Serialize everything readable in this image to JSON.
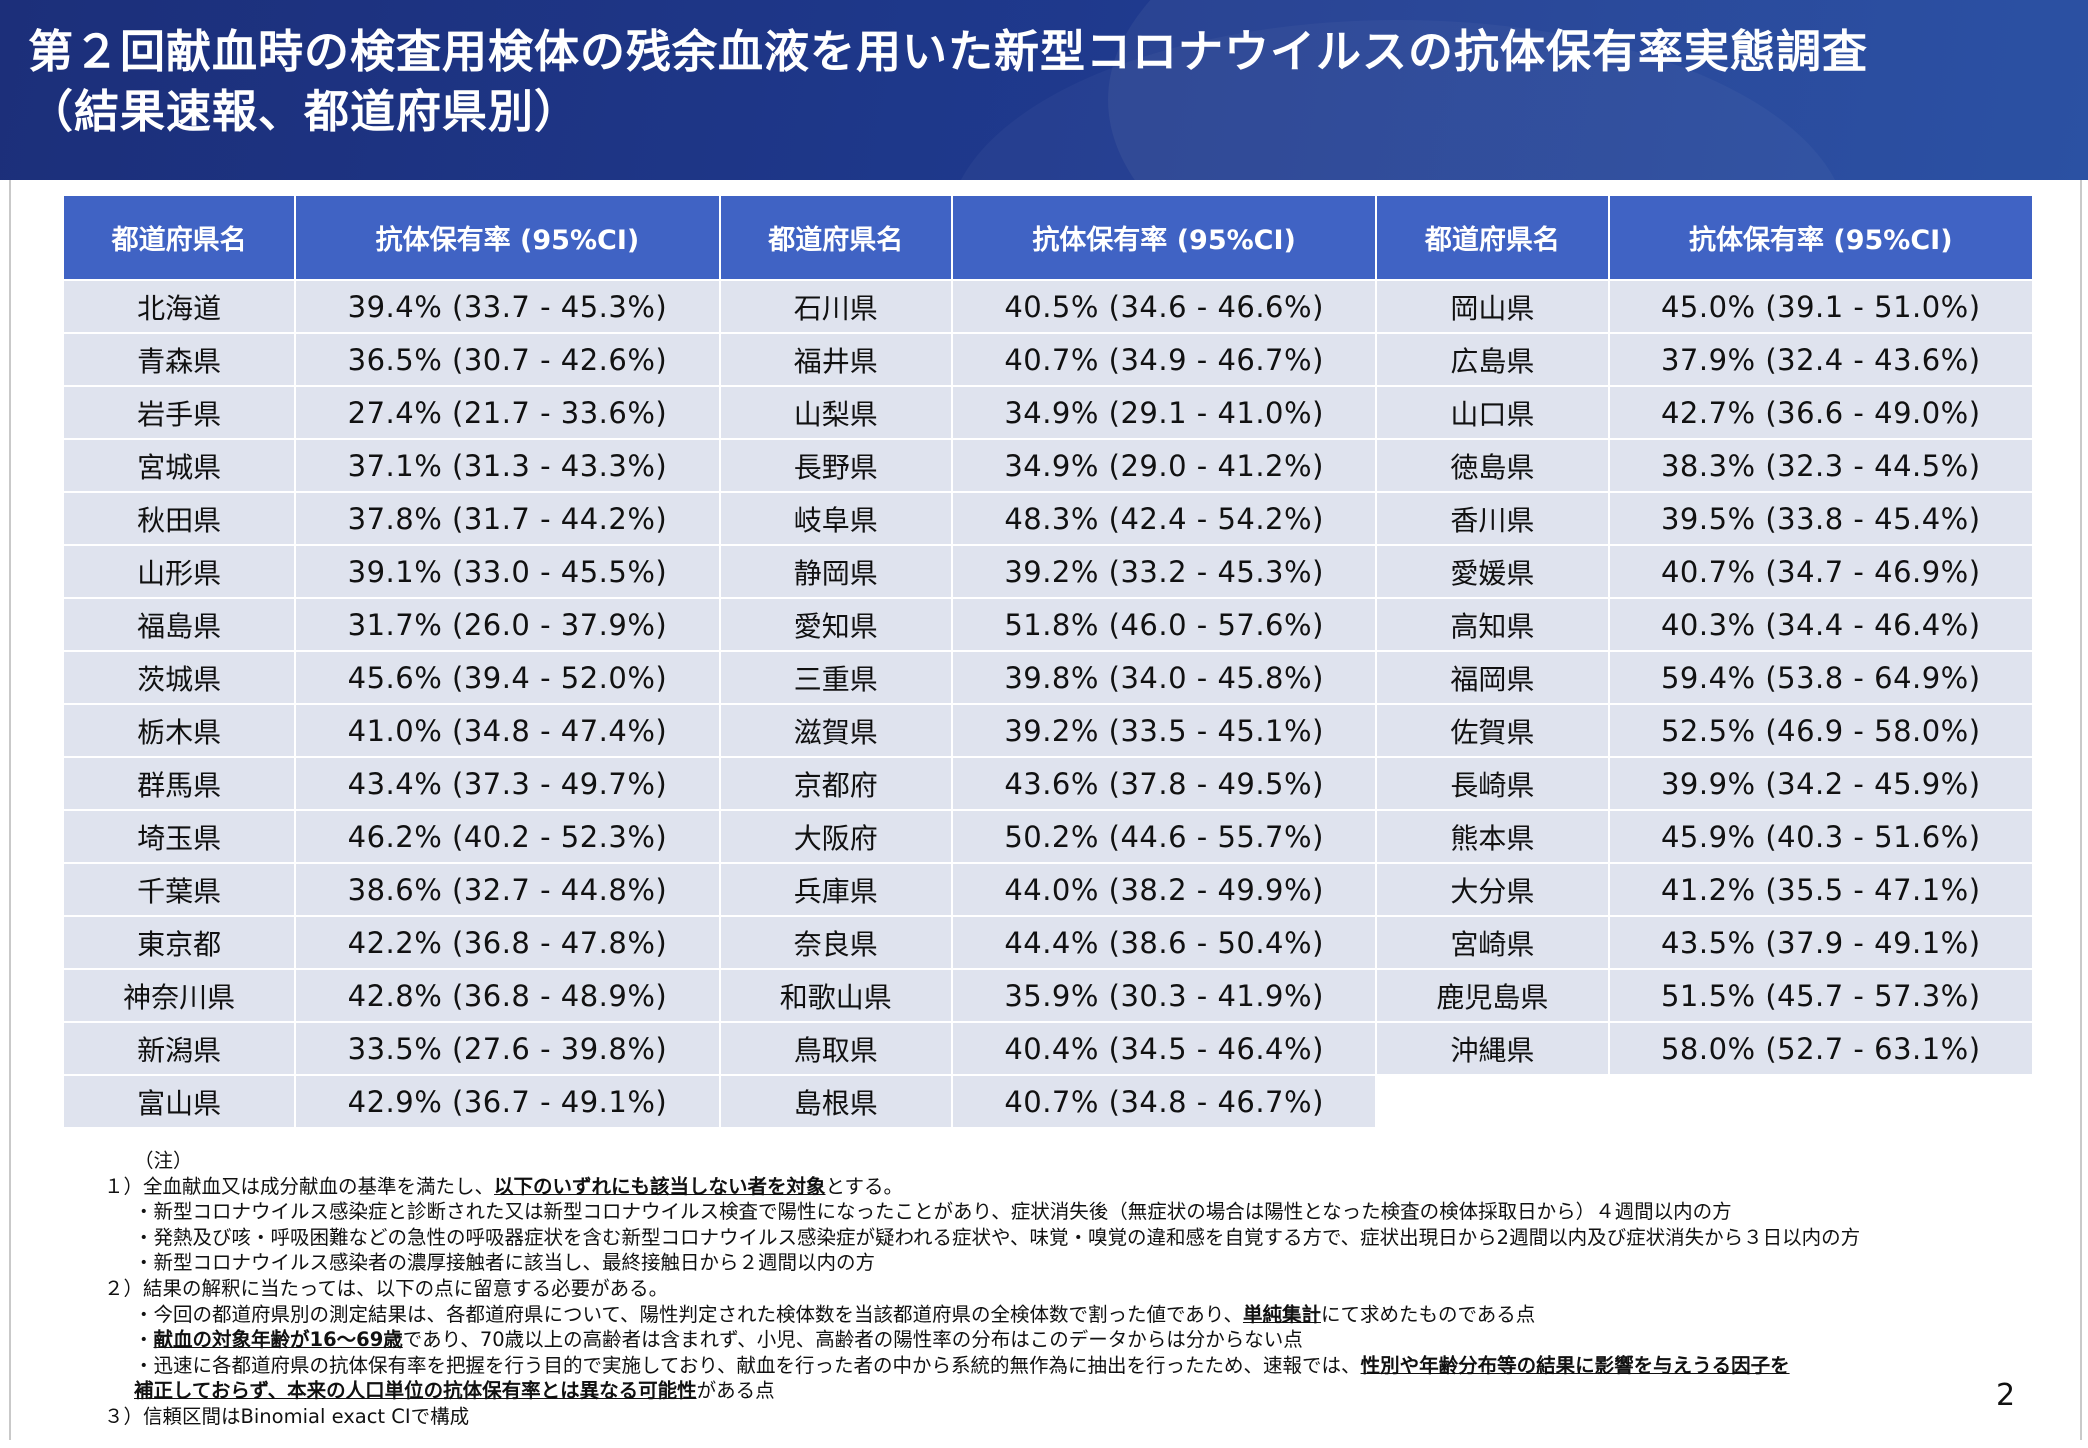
{
  "title": {
    "line1": "第２回献血時の検査用検体の残余血液を用いた新型コロナウイルスの抗体保有率実態調査",
    "line2": "（結果速報、都道府県別）"
  },
  "table": {
    "header_name": "都道府県名",
    "header_rate": "抗体保有率 (95%CI)",
    "columns": [
      [
        {
          "name": "北海道",
          "rate": "39.4% (33.7 - 45.3%)"
        },
        {
          "name": "青森県",
          "rate": "36.5% (30.7 - 42.6%)"
        },
        {
          "name": "岩手県",
          "rate": "27.4% (21.7 - 33.6%)"
        },
        {
          "name": "宮城県",
          "rate": "37.1% (31.3 - 43.3%)"
        },
        {
          "name": "秋田県",
          "rate": "37.8% (31.7 - 44.2%)"
        },
        {
          "name": "山形県",
          "rate": "39.1% (33.0 - 45.5%)"
        },
        {
          "name": "福島県",
          "rate": "31.7% (26.0 - 37.9%)"
        },
        {
          "name": "茨城県",
          "rate": "45.6% (39.4 - 52.0%)"
        },
        {
          "name": "栃木県",
          "rate": "41.0% (34.8 - 47.4%)"
        },
        {
          "name": "群馬県",
          "rate": "43.4% (37.3 - 49.7%)"
        },
        {
          "name": "埼玉県",
          "rate": "46.2% (40.2 - 52.3%)"
        },
        {
          "name": "千葉県",
          "rate": "38.6% (32.7 - 44.8%)"
        },
        {
          "name": "東京都",
          "rate": "42.2% (36.8 - 47.8%)"
        },
        {
          "name": "神奈川県",
          "rate": "42.8% (36.8 - 48.9%)"
        },
        {
          "name": "新潟県",
          "rate": "33.5% (27.6 - 39.8%)"
        },
        {
          "name": "富山県",
          "rate": "42.9% (36.7 - 49.1%)"
        }
      ],
      [
        {
          "name": "石川県",
          "rate": "40.5% (34.6 - 46.6%)"
        },
        {
          "name": "福井県",
          "rate": "40.7% (34.9 - 46.7%)"
        },
        {
          "name": "山梨県",
          "rate": "34.9% (29.1 - 41.0%)"
        },
        {
          "name": "長野県",
          "rate": "34.9% (29.0 - 41.2%)"
        },
        {
          "name": "岐阜県",
          "rate": "48.3% (42.4 - 54.2%)"
        },
        {
          "name": "静岡県",
          "rate": "39.2% (33.2 - 45.3%)"
        },
        {
          "name": "愛知県",
          "rate": "51.8% (46.0 - 57.6%)"
        },
        {
          "name": "三重県",
          "rate": "39.8% (34.0 - 45.8%)"
        },
        {
          "name": "滋賀県",
          "rate": "39.2% (33.5 - 45.1%)"
        },
        {
          "name": "京都府",
          "rate": "43.6% (37.8 - 49.5%)"
        },
        {
          "name": "大阪府",
          "rate": "50.2% (44.6 - 55.7%)"
        },
        {
          "name": "兵庫県",
          "rate": "44.0% (38.2 - 49.9%)"
        },
        {
          "name": "奈良県",
          "rate": "44.4% (38.6 - 50.4%)"
        },
        {
          "name": "和歌山県",
          "rate": "35.9% (30.3 - 41.9%)"
        },
        {
          "name": "鳥取県",
          "rate": "40.4% (34.5 - 46.4%)"
        },
        {
          "name": "島根県",
          "rate": "40.7% (34.8 - 46.7%)"
        }
      ],
      [
        {
          "name": "岡山県",
          "rate": "45.0% (39.1 - 51.0%)"
        },
        {
          "name": "広島県",
          "rate": "37.9% (32.4 - 43.6%)"
        },
        {
          "name": "山口県",
          "rate": "42.7% (36.6 - 49.0%)"
        },
        {
          "name": "徳島県",
          "rate": "38.3% (32.3 - 44.5%)"
        },
        {
          "name": "香川県",
          "rate": "39.5% (33.8 - 45.4%)"
        },
        {
          "name": "愛媛県",
          "rate": "40.7% (34.7 - 46.9%)"
        },
        {
          "name": "高知県",
          "rate": "40.3% (34.4 - 46.4%)"
        },
        {
          "name": "福岡県",
          "rate": "59.4% (53.8 - 64.9%)"
        },
        {
          "name": "佐賀県",
          "rate": "52.5% (46.9 - 58.0%)"
        },
        {
          "name": "長崎県",
          "rate": "39.9% (34.2 - 45.9%)"
        },
        {
          "name": "熊本県",
          "rate": "45.9% (40.3 - 51.6%)"
        },
        {
          "name": "大分県",
          "rate": "41.2% (35.5 - 47.1%)"
        },
        {
          "name": "宮崎県",
          "rate": "43.5% (37.9 - 49.1%)"
        },
        {
          "name": "鹿児島県",
          "rate": "51.5% (45.7 - 57.3%)"
        },
        {
          "name": "沖縄県",
          "rate": "58.0% (52.7 - 63.1%)"
        }
      ]
    ]
  },
  "notes": {
    "heading": "（注）",
    "n1": {
      "pre": "１）全血献血又は成分献血の基準を満たし、",
      "bold": "以下のいずれにも該当しない者を対象",
      "post": "とする。"
    },
    "n1_bullets": [
      "・新型コロナウイルス感染症と診断された又は新型コロナウイルス検査で陽性になったことがあり、症状消失後（無症状の場合は陽性となった検査の検体採取日から）４週間以内の方",
      "・発熱及び咳・呼吸困難などの急性の呼吸器症状を含む新型コロナウイルス感染症が疑われる症状や、味覚・嗅覚の違和感を自覚する方で、症状出現日から2週間以内及び症状消失から３日以内の方",
      "・新型コロナウイルス感染者の濃厚接触者に該当し、最終接触日から２週間以内の方"
    ],
    "n2": "２）結果の解釈に当たっては、以下の点に留意する必要がある。",
    "n2_b1": {
      "pre": "・今回の都道府県別の測定結果は、各都道府県について、陽性判定された検体数を当該都道府県の全検体数で割った値であり、",
      "bold": "単純集計",
      "post": "にて求めたものである点"
    },
    "n2_b2": {
      "pre": "・",
      "bold": "献血の対象年齢が16～69歳",
      "post": "であり、70歳以上の高齢者は含まれず、小児、高齢者の陽性率の分布はこのデータからは分からない点"
    },
    "n2_b3": {
      "pre": "・迅速に各都道府県の抗体保有率を把握を行う目的で実施しており、献血を行った者の中から系統的無作為に抽出を行ったため、速報では、",
      "bold": "性別や年齢分布等の結果に影響を与えうる因子を"
    },
    "n2_b3_cont": {
      "bold": "補正しておらず、本来の人口単位の抗体保有率とは異なる可能性",
      "post": "がある点"
    },
    "n3": "３）信頼区間はBinomial exact CIで構成"
  },
  "page_number": "2",
  "colors": {
    "title_bg": "#1f3a8e",
    "header_bg": "#4063c4",
    "row_bg": "#dfe3ee"
  }
}
